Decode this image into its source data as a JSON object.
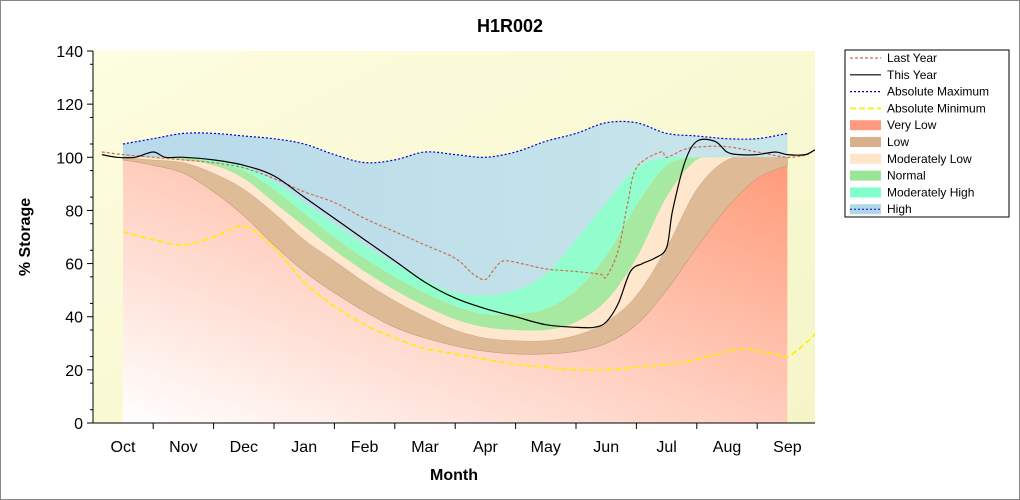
{
  "chart_data": {
    "type": "area",
    "title": "H1R002",
    "xlabel": "Month",
    "ylabel": "% Storage",
    "ylim": [
      0,
      140
    ],
    "yticks": [
      0,
      20,
      40,
      60,
      80,
      100,
      120,
      140
    ],
    "categories": [
      "Oct",
      "Nov",
      "Dec",
      "Jan",
      "Feb",
      "Mar",
      "Apr",
      "May",
      "Jun",
      "Jul",
      "Aug",
      "Sep"
    ],
    "grid": false,
    "legend_placement": "right",
    "bands": [
      {
        "name": "Very Low",
        "color": "#ff9a80",
        "upper": [
          [
            0,
            99
          ],
          [
            0.5,
            97
          ],
          [
            1,
            94
          ],
          [
            1.5,
            87
          ],
          [
            2,
            78
          ],
          [
            2.5,
            67
          ],
          [
            3,
            57
          ],
          [
            3.5,
            49
          ],
          [
            4,
            42
          ],
          [
            4.5,
            36
          ],
          [
            5,
            32
          ],
          [
            5.5,
            29
          ],
          [
            6,
            27
          ],
          [
            6.5,
            26
          ],
          [
            7,
            26
          ],
          [
            7.5,
            27
          ],
          [
            8,
            30
          ],
          [
            8.5,
            37
          ],
          [
            9,
            50
          ],
          [
            9.5,
            66
          ],
          [
            10,
            81
          ],
          [
            10.5,
            92
          ],
          [
            11,
            97
          ]
        ]
      },
      {
        "name": "Low",
        "color": "#d9b08c",
        "upper": [
          [
            0,
            100
          ],
          [
            0.5,
            99
          ],
          [
            1,
            98
          ],
          [
            1.5,
            94
          ],
          [
            2,
            88
          ],
          [
            2.5,
            79
          ],
          [
            3,
            69
          ],
          [
            3.5,
            61
          ],
          [
            4,
            53
          ],
          [
            4.5,
            46
          ],
          [
            5,
            40
          ],
          [
            5.5,
            35
          ],
          [
            6,
            32
          ],
          [
            6.5,
            31
          ],
          [
            7,
            31
          ],
          [
            7.5,
            33
          ],
          [
            8,
            38
          ],
          [
            8.5,
            48
          ],
          [
            9,
            66
          ],
          [
            9.5,
            88
          ],
          [
            10,
            99
          ],
          [
            10.5,
            100
          ],
          [
            11,
            100
          ]
        ]
      },
      {
        "name": "Moderately Low",
        "color": "#ffe4cc",
        "upper": [
          [
            0,
            100
          ],
          [
            0.5,
            100
          ],
          [
            1,
            99
          ],
          [
            1.5,
            97
          ],
          [
            2,
            92
          ],
          [
            2.5,
            83
          ],
          [
            3,
            74
          ],
          [
            3.5,
            65
          ],
          [
            4,
            57
          ],
          [
            4.5,
            50
          ],
          [
            5,
            44
          ],
          [
            5.5,
            39
          ],
          [
            6,
            36
          ],
          [
            6.5,
            35
          ],
          [
            7,
            35
          ],
          [
            7.5,
            38
          ],
          [
            8,
            46
          ],
          [
            8.5,
            62
          ],
          [
            9,
            85
          ],
          [
            9.5,
            99
          ],
          [
            10,
            100
          ],
          [
            10.5,
            100
          ],
          [
            11,
            100
          ]
        ]
      },
      {
        "name": "Normal",
        "color": "#99e699",
        "upper": [
          [
            0,
            100
          ],
          [
            0.5,
            100
          ],
          [
            1,
            100
          ],
          [
            1.5,
            98
          ],
          [
            2,
            95
          ],
          [
            2.5,
            88
          ],
          [
            3,
            79
          ],
          [
            3.5,
            70
          ],
          [
            4,
            62
          ],
          [
            4.5,
            55
          ],
          [
            5,
            49
          ],
          [
            5.5,
            44
          ],
          [
            6,
            41
          ],
          [
            6.5,
            41
          ],
          [
            7,
            43
          ],
          [
            7.5,
            50
          ],
          [
            8,
            63
          ],
          [
            8.5,
            82
          ],
          [
            9,
            97
          ],
          [
            9.5,
            100
          ],
          [
            10,
            100
          ],
          [
            10.5,
            100
          ],
          [
            11,
            100
          ]
        ]
      },
      {
        "name": "Moderately High",
        "color": "#80ffcc",
        "upper": [
          [
            0,
            100
          ],
          [
            0.5,
            100
          ],
          [
            1,
            100
          ],
          [
            1.5,
            99
          ],
          [
            2,
            97
          ],
          [
            2.5,
            91
          ],
          [
            3,
            83
          ],
          [
            3.5,
            75
          ],
          [
            4,
            67
          ],
          [
            4.5,
            60
          ],
          [
            5,
            54
          ],
          [
            5.5,
            49
          ],
          [
            6,
            48
          ],
          [
            6.5,
            50
          ],
          [
            7,
            56
          ],
          [
            7.5,
            69
          ],
          [
            8,
            83
          ],
          [
            8.5,
            96
          ],
          [
            9,
            100
          ],
          [
            9.5,
            100
          ],
          [
            10,
            100
          ],
          [
            10.5,
            100
          ],
          [
            11,
            100
          ]
        ]
      },
      {
        "name": "High",
        "color": "#b0d8ea",
        "upper": [
          [
            0,
            105
          ],
          [
            0.5,
            107
          ],
          [
            1,
            109
          ],
          [
            1.5,
            109
          ],
          [
            2,
            108
          ],
          [
            2.5,
            107
          ],
          [
            3,
            105
          ],
          [
            3.5,
            101
          ],
          [
            4,
            98
          ],
          [
            4.5,
            99
          ],
          [
            5,
            102
          ],
          [
            5.5,
            101
          ],
          [
            6,
            100
          ],
          [
            6.5,
            102
          ],
          [
            7,
            106
          ],
          [
            7.5,
            109
          ],
          [
            8,
            113
          ],
          [
            8.5,
            113
          ],
          [
            9,
            109
          ],
          [
            9.5,
            108
          ],
          [
            10,
            107
          ],
          [
            10.5,
            107
          ],
          [
            11,
            109
          ]
        ]
      }
    ],
    "series": [
      {
        "name": "Last Year",
        "color": "#c87050",
        "dash": "3,2",
        "points": [
          [
            -0.35,
            102
          ],
          [
            0,
            101
          ],
          [
            0.5,
            100
          ],
          [
            1,
            99
          ],
          [
            1.5,
            98
          ],
          [
            2,
            96
          ],
          [
            2.5,
            92
          ],
          [
            3,
            87
          ],
          [
            3.5,
            83
          ],
          [
            4,
            77
          ],
          [
            4.5,
            72
          ],
          [
            5,
            67
          ],
          [
            5.5,
            62
          ],
          [
            5.8,
            56
          ],
          [
            6,
            54
          ],
          [
            6.15,
            58
          ],
          [
            6.3,
            61
          ],
          [
            6.6,
            60
          ],
          [
            7,
            58
          ],
          [
            7.5,
            57
          ],
          [
            7.9,
            56
          ],
          [
            8,
            55
          ],
          [
            8.2,
            65
          ],
          [
            8.35,
            82
          ],
          [
            8.5,
            96
          ],
          [
            8.9,
            102
          ],
          [
            9,
            100
          ],
          [
            9.3,
            103
          ],
          [
            9.6,
            104
          ],
          [
            10,
            104
          ],
          [
            10.5,
            102
          ],
          [
            11,
            100
          ],
          [
            11.35,
            101
          ]
        ]
      },
      {
        "name": "This Year",
        "color": "#000000",
        "dash": "",
        "points": [
          [
            -0.35,
            101
          ],
          [
            -0.1,
            100
          ],
          [
            0.2,
            100
          ],
          [
            0.5,
            102
          ],
          [
            0.7,
            100
          ],
          [
            1,
            100
          ],
          [
            1.5,
            99
          ],
          [
            2,
            97
          ],
          [
            2.5,
            93
          ],
          [
            3,
            85
          ],
          [
            3.5,
            77
          ],
          [
            4,
            69
          ],
          [
            4.5,
            61
          ],
          [
            5,
            53
          ],
          [
            5.5,
            47
          ],
          [
            6,
            43
          ],
          [
            6.5,
            40
          ],
          [
            7,
            37
          ],
          [
            7.5,
            36
          ],
          [
            7.8,
            36
          ],
          [
            8,
            38
          ],
          [
            8.2,
            45
          ],
          [
            8.4,
            57
          ],
          [
            8.6,
            60
          ],
          [
            8.8,
            62
          ],
          [
            9,
            66
          ],
          [
            9.1,
            80
          ],
          [
            9.3,
            98
          ],
          [
            9.5,
            106
          ],
          [
            9.8,
            106
          ],
          [
            10,
            102
          ],
          [
            10.2,
            101
          ],
          [
            10.5,
            101
          ],
          [
            10.8,
            102
          ],
          [
            11,
            101
          ],
          [
            11.3,
            101
          ],
          [
            11.5,
            103
          ],
          [
            11.7,
            101
          ],
          [
            12,
            101
          ]
        ]
      },
      {
        "name": "Absolute Maximum",
        "color": "#0000cc",
        "dash": "2,2",
        "points": [
          [
            0,
            105
          ],
          [
            0.5,
            107
          ],
          [
            1,
            109
          ],
          [
            1.5,
            109
          ],
          [
            2,
            108
          ],
          [
            2.5,
            107
          ],
          [
            3,
            105
          ],
          [
            3.5,
            101
          ],
          [
            4,
            98
          ],
          [
            4.5,
            99
          ],
          [
            5,
            102
          ],
          [
            5.5,
            101
          ],
          [
            6,
            100
          ],
          [
            6.5,
            102
          ],
          [
            7,
            106
          ],
          [
            7.5,
            109
          ],
          [
            8,
            113
          ],
          [
            8.5,
            113
          ],
          [
            9,
            109
          ],
          [
            9.5,
            108
          ],
          [
            10,
            107
          ],
          [
            10.5,
            107
          ],
          [
            11,
            109
          ]
        ]
      },
      {
        "name": "Absolute Minimum",
        "color": "#ffee00",
        "dash": "6,3",
        "points": [
          [
            0,
            72
          ],
          [
            0.5,
            69
          ],
          [
            1,
            67
          ],
          [
            1.5,
            70
          ],
          [
            2,
            74
          ],
          [
            2.5,
            66
          ],
          [
            3,
            53
          ],
          [
            3.5,
            44
          ],
          [
            4,
            37
          ],
          [
            4.5,
            32
          ],
          [
            5,
            28
          ],
          [
            5.5,
            26
          ],
          [
            6,
            24
          ],
          [
            6.5,
            22
          ],
          [
            7,
            21
          ],
          [
            7.5,
            20
          ],
          [
            8,
            20
          ],
          [
            8.5,
            21
          ],
          [
            9,
            22
          ],
          [
            9.5,
            24
          ],
          [
            10,
            27
          ],
          [
            10.3,
            28
          ],
          [
            10.5,
            27
          ],
          [
            10.8,
            26
          ],
          [
            11,
            25
          ],
          [
            11.3,
            30
          ],
          [
            11.6,
            37
          ],
          [
            12,
            46
          ],
          [
            12.5,
            56
          ]
        ]
      }
    ],
    "legend": [
      "Last Year",
      "This Year",
      "Absolute Maximum",
      "Absolute Minimum",
      "Very Low",
      "Low",
      "Moderately Low",
      "Normal",
      "Moderately High",
      "High"
    ]
  }
}
